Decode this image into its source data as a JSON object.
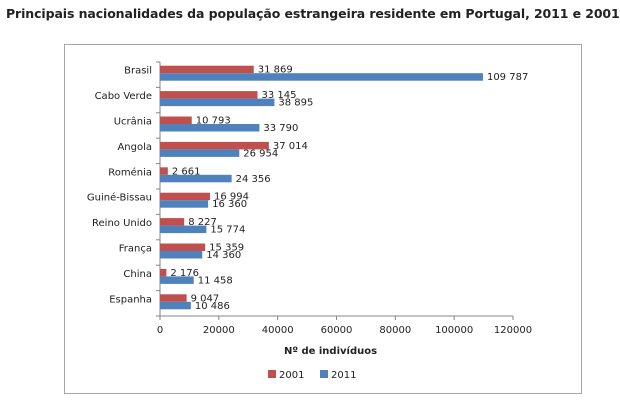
{
  "chart_data": {
    "type": "bar",
    "orientation": "horizontal",
    "title": "Principais nacionalidades da população estrangeira residente em Portugal, 2011 e 2001",
    "categories": [
      "Brasil",
      "Cabo Verde",
      "Ucrânia",
      "Angola",
      "Roménia",
      "Guiné-Bissau",
      "Reino Unido",
      "França",
      "China",
      "Espanha"
    ],
    "series": [
      {
        "name": "2001",
        "color": "#c0504d",
        "values": [
          31869,
          33145,
          10793,
          37014,
          2661,
          16994,
          8227,
          15359,
          2176,
          9047
        ],
        "labels": [
          "31 869",
          "33 145",
          "10 793",
          "37 014",
          "2 661",
          "16 994",
          "8 227",
          "15 359",
          "2 176",
          "9 047"
        ]
      },
      {
        "name": "2011",
        "color": "#4f81bd",
        "values": [
          109787,
          38895,
          33790,
          26954,
          24356,
          16360,
          15774,
          14360,
          11458,
          10486
        ],
        "labels": [
          "109 787",
          "38 895",
          "33 790",
          "26 954",
          "24 356",
          "16 360",
          "15 774",
          "14 360",
          "11 458",
          "10 486"
        ]
      }
    ],
    "xlabel": "Nº de indivíduos",
    "ylabel": "",
    "xlim": [
      0,
      120000
    ],
    "xticks": [
      0,
      20000,
      40000,
      60000,
      80000,
      100000,
      120000
    ],
    "xtick_labels": [
      "0",
      "20000",
      "40000",
      "60000",
      "80000",
      "100000",
      "120000"
    ],
    "legend": [
      "2001",
      "2011"
    ],
    "legend_position": "bottom",
    "grid": false
  }
}
